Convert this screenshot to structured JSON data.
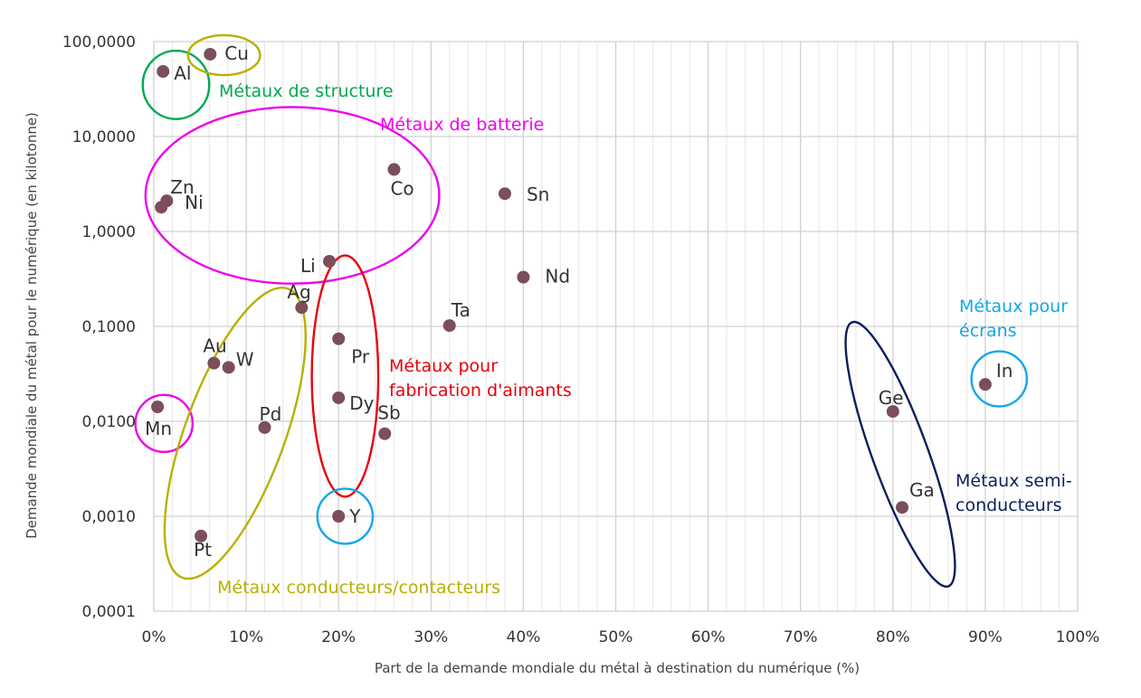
{
  "chart_data": {
    "type": "scatter",
    "title": "",
    "xlabel": "Part de la demande mondiale du métal à destination du numérique (%)",
    "ylabel": "Demande mondiale du métal pour le numérique (en kilotonne)",
    "xlim": [
      0,
      100
    ],
    "ylim": [
      0.0001,
      100
    ],
    "yscale": "log",
    "grid": true,
    "x_ticks": [
      "0%",
      "10%",
      "20%",
      "30%",
      "40%",
      "50%",
      "60%",
      "70%",
      "80%",
      "90%",
      "100%"
    ],
    "y_ticks": [
      "0,0001",
      "0,0010",
      "0,0100",
      "0,1000",
      "1,0000",
      "10,0000",
      "100,0000"
    ],
    "point_color": "#7b4e5a",
    "points": [
      {
        "label": "Cu",
        "x": 6.1,
        "y": 73.6
      },
      {
        "label": "Al",
        "x": 1.0,
        "y": 48.5
      },
      {
        "label": "Zn",
        "x": 1.4,
        "y": 2.1
      },
      {
        "label": "Ni",
        "x": 0.8,
        "y": 1.8
      },
      {
        "label": "Co",
        "x": 26,
        "y": 4.5
      },
      {
        "label": "Sn",
        "x": 38,
        "y": 2.5
      },
      {
        "label": "Li",
        "x": 19,
        "y": 0.485
      },
      {
        "label": "Nd",
        "x": 40,
        "y": 0.33
      },
      {
        "label": "Ag",
        "x": 16,
        "y": 0.158
      },
      {
        "label": "Ta",
        "x": 32,
        "y": 0.102
      },
      {
        "label": "Pr",
        "x": 20,
        "y": 0.074
      },
      {
        "label": "Au",
        "x": 6.5,
        "y": 0.041
      },
      {
        "label": "W",
        "x": 8.1,
        "y": 0.037
      },
      {
        "label": "Dy",
        "x": 20,
        "y": 0.0177
      },
      {
        "label": "In",
        "x": 90,
        "y": 0.0245
      },
      {
        "label": "Mn",
        "x": 0.4,
        "y": 0.0142
      },
      {
        "label": "Ge",
        "x": 80,
        "y": 0.0127
      },
      {
        "label": "Pd",
        "x": 12,
        "y": 0.0086
      },
      {
        "label": "Sb",
        "x": 25,
        "y": 0.0074
      },
      {
        "label": "Ga",
        "x": 81,
        "y": 0.00124
      },
      {
        "label": "Y",
        "x": 20,
        "y": 0.001
      },
      {
        "label": "Pt",
        "x": 5.1,
        "y": 0.00062
      }
    ],
    "annotations": [
      {
        "id": "structure",
        "lines": [
          "Métaux de structure"
        ],
        "color": "#00a94f"
      },
      {
        "id": "batterie",
        "lines": [
          "Métaux de batterie"
        ],
        "color": "#ee00ee"
      },
      {
        "id": "aimants",
        "lines": [
          "Métaux pour",
          "fabrication d'aimants"
        ],
        "color": "#e8000b"
      },
      {
        "id": "ecrans",
        "lines": [
          "Métaux pour",
          "écrans"
        ],
        "color": "#14a8e6"
      },
      {
        "id": "semi",
        "lines": [
          "Métaux semi-",
          "conducteurs"
        ],
        "color": "#0b1f5c"
      },
      {
        "id": "conducteurs",
        "lines": [
          "Métaux conducteurs/contacteurs"
        ],
        "color": "#b8b000"
      }
    ]
  }
}
